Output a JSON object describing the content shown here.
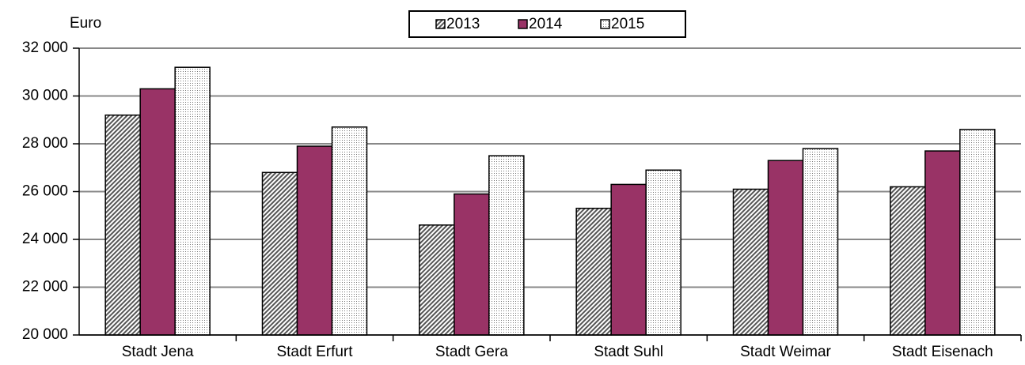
{
  "chart_data": {
    "type": "bar",
    "y_label": "Euro",
    "categories": [
      "Stadt Jena",
      "Stadt Erfurt",
      "Stadt Gera",
      "Stadt Suhl",
      "Stadt Weimar",
      "Stadt Eisenach"
    ],
    "series": [
      {
        "name": "2013",
        "color": "#808080",
        "pattern": "hatch",
        "values": [
          29200,
          26800,
          24600,
          25300,
          26100,
          26200
        ]
      },
      {
        "name": "2014",
        "color": "#993366",
        "pattern": "solid",
        "values": [
          30300,
          27900,
          25900,
          26300,
          27300,
          27700
        ]
      },
      {
        "name": "2015",
        "color": "#ffffff",
        "pattern": "dots",
        "values": [
          31200,
          28700,
          27500,
          26900,
          27800,
          28600
        ]
      }
    ],
    "ylim": [
      20000,
      32000
    ],
    "yticks": [
      {
        "value": 20000,
        "label": "20 000"
      },
      {
        "value": 22000,
        "label": "22 000"
      },
      {
        "value": 24000,
        "label": "24 000"
      },
      {
        "value": 26000,
        "label": "26 000"
      },
      {
        "value": 28000,
        "label": "28 000"
      },
      {
        "value": 30000,
        "label": "30 000"
      },
      {
        "value": 32000,
        "label": "32 000"
      }
    ],
    "grid": true,
    "legend": "top"
  }
}
